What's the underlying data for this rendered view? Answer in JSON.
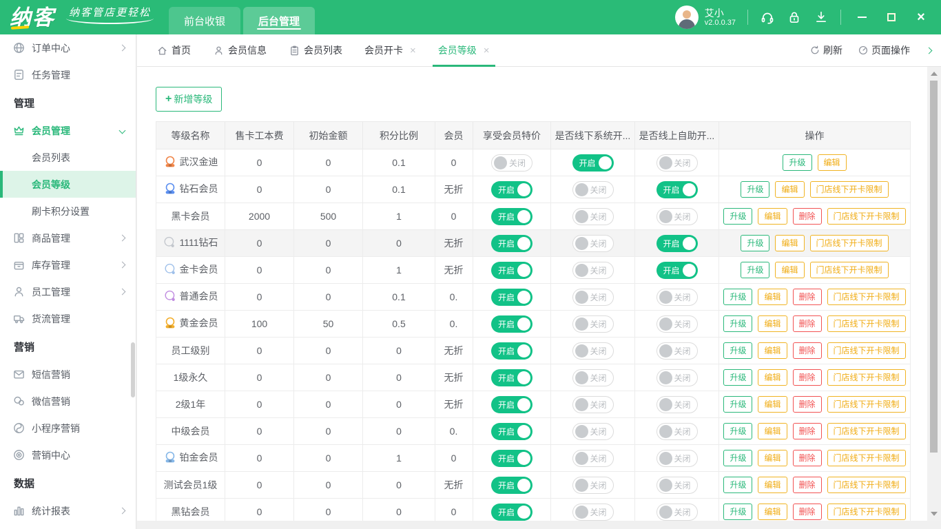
{
  "colors": {
    "brand": "#2abb77",
    "toggle_on": "#12c287",
    "amber": "#f0b322",
    "red": "#f25252",
    "active_item_bg": "#ddf4e8"
  },
  "header": {
    "logo": "纳客",
    "tagline": "纳客管店更轻松",
    "nav": [
      {
        "label": "前台收银",
        "active": false
      },
      {
        "label": "后台管理",
        "active": true
      }
    ],
    "user": {
      "name": "艾小",
      "version": "v2.0.0.37"
    }
  },
  "sidebar": {
    "items": [
      {
        "type": "item",
        "icon": "globe",
        "label": "订单中心",
        "chevron": "right"
      },
      {
        "type": "item",
        "icon": "task",
        "label": "任务管理"
      },
      {
        "type": "section",
        "label": "管理"
      },
      {
        "type": "item",
        "icon": "crown",
        "label": "会员管理",
        "chevron": "down",
        "green": true
      },
      {
        "type": "subitem",
        "label": "会员列表"
      },
      {
        "type": "subitem",
        "label": "会员等级",
        "active": true
      },
      {
        "type": "subitem",
        "label": "刷卡积分设置"
      },
      {
        "type": "item",
        "icon": "goods",
        "label": "商品管理",
        "chevron": "right"
      },
      {
        "type": "item",
        "icon": "stock",
        "label": "库存管理",
        "chevron": "right"
      },
      {
        "type": "item",
        "icon": "staff",
        "label": "员工管理",
        "chevron": "right"
      },
      {
        "type": "item",
        "icon": "truck",
        "label": "货流管理"
      },
      {
        "type": "section",
        "label": "营销"
      },
      {
        "type": "item",
        "icon": "mail",
        "label": "短信营销"
      },
      {
        "type": "item",
        "icon": "wechat",
        "label": "微信营销"
      },
      {
        "type": "item",
        "icon": "mini",
        "label": "小程序营销"
      },
      {
        "type": "item",
        "icon": "target",
        "label": "营销中心"
      },
      {
        "type": "section",
        "label": "数据"
      },
      {
        "type": "item",
        "icon": "chart",
        "label": "统计报表",
        "chevron": "right"
      }
    ]
  },
  "tabbar": {
    "tabs": [
      {
        "label": "首页",
        "icon": "home"
      },
      {
        "label": "会员信息",
        "icon": "user"
      },
      {
        "label": "会员列表",
        "icon": "list"
      },
      {
        "label": "会员开卡",
        "closable": true
      },
      {
        "label": "会员等级",
        "closable": true,
        "active": true
      }
    ],
    "refresh": "刷新",
    "page_ops": "页面操作"
  },
  "content": {
    "add_button": "新增等级",
    "table": {
      "columns": [
        "等级名称",
        "售卡工本费",
        "初始金额",
        "积分比例",
        "会员",
        "享受会员特价",
        "是否线下系统开...",
        "是否线上自助开...",
        "操作"
      ],
      "toggle_on": "开启",
      "toggle_off": "关闭",
      "actions": {
        "upgrade": "升级",
        "edit": "编辑",
        "delete": "删除",
        "limit": "门店线下开卡限制"
      },
      "rows": [
        {
          "name": "武汉金迪",
          "icon": "medal-orange",
          "fee": "0",
          "init": "0",
          "ratio": "0.1",
          "discount": "0",
          "special": "off",
          "offline": "on",
          "online": "off",
          "actions": [
            "upgrade",
            "edit"
          ],
          "highlighted": false
        },
        {
          "name": "钻石会员",
          "icon": "medal-blue",
          "fee": "0",
          "init": "0",
          "ratio": "0.1",
          "discount": "无折",
          "special": "on",
          "offline": "off",
          "online": "on",
          "actions": [
            "upgrade",
            "edit",
            "limit"
          ],
          "highlighted": false
        },
        {
          "name": "黑卡会员",
          "icon": null,
          "fee": "2000",
          "init": "500",
          "ratio": "1",
          "discount": "0",
          "special": "on",
          "offline": "off",
          "online": "off",
          "actions": [
            "upgrade",
            "edit",
            "delete",
            "limit"
          ],
          "highlighted": false
        },
        {
          "name": "1111钻石",
          "icon": "ring-gray",
          "fee": "0",
          "init": "0",
          "ratio": "0",
          "discount": "无折",
          "special": "on",
          "offline": "off",
          "online": "on",
          "actions": [
            "upgrade",
            "edit",
            "limit"
          ],
          "highlighted": true
        },
        {
          "name": "金卡会员",
          "icon": "ring-blue",
          "fee": "0",
          "init": "0",
          "ratio": "1",
          "discount": "无折",
          "special": "on",
          "offline": "off",
          "online": "on",
          "actions": [
            "upgrade",
            "edit",
            "limit"
          ],
          "highlighted": false
        },
        {
          "name": "普通会员",
          "icon": "ring-purple",
          "fee": "0",
          "init": "0",
          "ratio": "0.1",
          "discount": "0.",
          "special": "on",
          "offline": "off",
          "online": "off",
          "actions": [
            "upgrade",
            "edit",
            "delete",
            "limit"
          ],
          "highlighted": false
        },
        {
          "name": "黄金会员",
          "icon": "medal-gold",
          "fee": "100",
          "init": "50",
          "ratio": "0.5",
          "discount": "0.",
          "special": "on",
          "offline": "off",
          "online": "off",
          "actions": [
            "upgrade",
            "edit",
            "delete",
            "limit"
          ],
          "highlighted": false
        },
        {
          "name": "员工级别",
          "icon": null,
          "fee": "0",
          "init": "0",
          "ratio": "0",
          "discount": "无折",
          "special": "on",
          "offline": "off",
          "online": "off",
          "actions": [
            "upgrade",
            "edit",
            "delete",
            "limit"
          ],
          "highlighted": false
        },
        {
          "name": "1级永久",
          "icon": null,
          "fee": "0",
          "init": "0",
          "ratio": "0",
          "discount": "无折",
          "special": "on",
          "offline": "off",
          "online": "off",
          "actions": [
            "upgrade",
            "edit",
            "delete",
            "limit"
          ],
          "highlighted": false
        },
        {
          "name": "2级1年",
          "icon": null,
          "fee": "0",
          "init": "0",
          "ratio": "0",
          "discount": "无折",
          "special": "on",
          "offline": "off",
          "online": "off",
          "actions": [
            "upgrade",
            "edit",
            "delete",
            "limit"
          ],
          "highlighted": false
        },
        {
          "name": "中级会员",
          "icon": null,
          "fee": "0",
          "init": "0",
          "ratio": "0",
          "discount": "0.",
          "special": "on",
          "offline": "off",
          "online": "off",
          "actions": [
            "upgrade",
            "edit",
            "delete",
            "limit"
          ],
          "highlighted": false
        },
        {
          "name": "铂金会员",
          "icon": "medal-lightblue",
          "fee": "0",
          "init": "0",
          "ratio": "1",
          "discount": "0",
          "special": "on",
          "offline": "off",
          "online": "off",
          "actions": [
            "upgrade",
            "edit",
            "delete",
            "limit"
          ],
          "highlighted": false
        },
        {
          "name": "测试会员1级",
          "icon": null,
          "fee": "0",
          "init": "0",
          "ratio": "0",
          "discount": "无折",
          "special": "on",
          "offline": "off",
          "online": "off",
          "actions": [
            "upgrade",
            "edit",
            "delete",
            "limit"
          ],
          "highlighted": false
        },
        {
          "name": "黑钻会员",
          "icon": null,
          "fee": "0",
          "init": "0",
          "ratio": "0",
          "discount": "0",
          "special": "on",
          "offline": "off",
          "online": "off",
          "actions": [
            "upgrade",
            "edit",
            "delete",
            "limit"
          ],
          "highlighted": false
        }
      ]
    }
  }
}
